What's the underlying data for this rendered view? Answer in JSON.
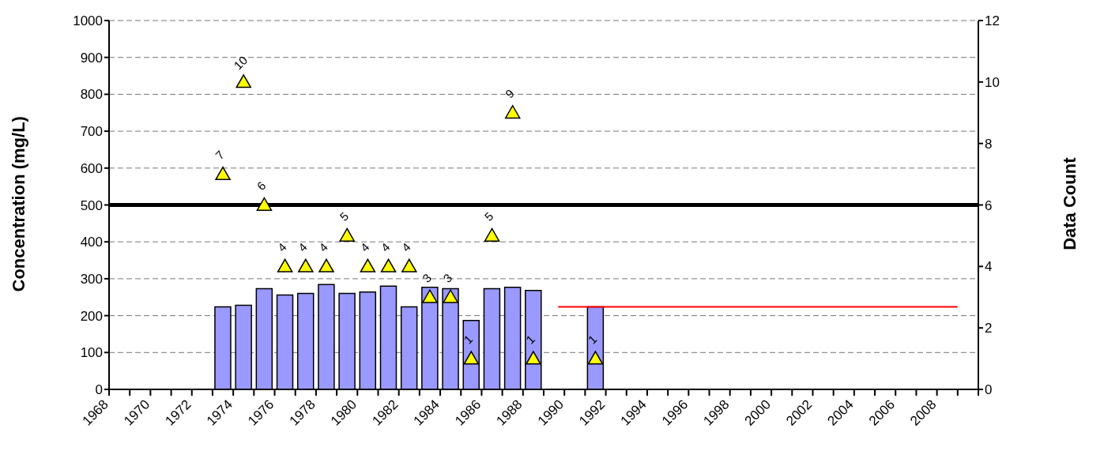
{
  "chart_data": {
    "type": "bar",
    "ylabel": "Concentration (mg/L)",
    "y2label": "Data Count",
    "x": [
      1973.5,
      1974.5,
      1975.5,
      1976.5,
      1977.5,
      1978.5,
      1979.5,
      1980.5,
      1981.5,
      1982.5,
      1983.5,
      1984.5,
      1985.5,
      1986.5,
      1987.5,
      1988.5,
      1991.5
    ],
    "series": [
      {
        "color": "#9999ff",
        "values": [
          224,
          228,
          273,
          256,
          260,
          284,
          260,
          264,
          280,
          224,
          277,
          273,
          187,
          273,
          277,
          268,
          224
        ]
      },
      {
        "type": "scatter",
        "axis": "y2",
        "marker": "triangle",
        "color": "#ffff00",
        "values": [
          7,
          10,
          6,
          4,
          4,
          4,
          5,
          4,
          4,
          4,
          3,
          3,
          1,
          5,
          9,
          1,
          1
        ],
        "value_labels": [
          "7",
          "10",
          "6",
          "4",
          "4",
          "4",
          "5",
          "4",
          "4",
          "4",
          "3",
          "3",
          "1",
          "5",
          "9",
          "1",
          "1"
        ]
      },
      {
        "type": "line",
        "color": "#ff0000",
        "x": [
          1989.7,
          2009
        ],
        "values": [
          224,
          224
        ]
      }
    ],
    "line_style": "solid",
    "xlim": [
      1968,
      2010
    ],
    "xticks": [
      1968,
      {
        "value": 1969,
        "label": null
      },
      1970,
      {
        "value": 1971,
        "label": null
      },
      1972,
      {
        "value": 1973,
        "label": null
      },
      1974,
      {
        "value": 1975,
        "label": null
      },
      1976,
      {
        "value": 1977,
        "label": null
      },
      1978,
      {
        "value": 1979,
        "label": null
      },
      1980,
      {
        "value": 1981,
        "label": null
      },
      1982,
      {
        "value": 1983,
        "label": null
      },
      1984,
      {
        "value": 1985,
        "label": null
      },
      1986,
      {
        "value": 1987,
        "label": null
      },
      1988,
      {
        "value": 1989,
        "label": null
      },
      1990,
      {
        "value": 1991,
        "label": null
      },
      1992,
      {
        "value": 1993,
        "label": null
      },
      1994,
      {
        "value": 1995,
        "label": null
      },
      1996,
      {
        "value": 1997,
        "label": null
      },
      1998,
      {
        "value": 1999,
        "label": null
      },
      2000,
      {
        "value": 2001,
        "label": null
      },
      2002,
      {
        "value": 2003,
        "label": null
      },
      2004,
      {
        "value": 2005,
        "label": null
      },
      2006,
      {
        "value": 2007,
        "label": null
      },
      2008,
      {
        "value": 2009,
        "label": null
      },
      {
        "value": 2010,
        "label": null
      }
    ],
    "ylim": [
      0,
      1000
    ],
    "yticks": [
      0,
      100,
      200,
      300,
      400,
      500,
      600,
      700,
      800,
      900,
      1000
    ],
    "y2lim": [
      0,
      12
    ],
    "y2ticks": [
      0,
      2,
      4,
      6,
      8,
      10,
      12
    ],
    "grid": "y",
    "legend": false,
    "ref_lines": [
      {
        "axis": "y",
        "value": 500,
        "color": "#000000"
      }
    ]
  }
}
